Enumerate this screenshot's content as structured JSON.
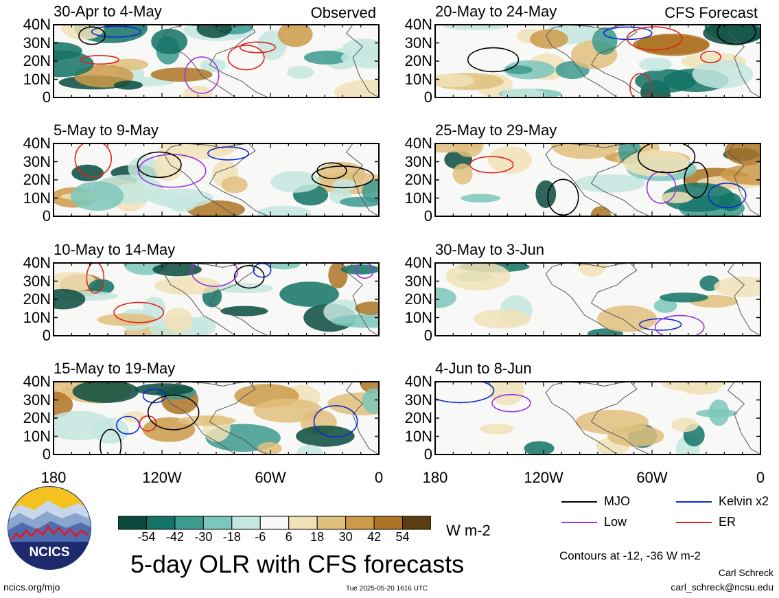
{
  "panels": [
    {
      "id": "p1",
      "col": 0,
      "row": 0,
      "title": "30-Apr to 4-May",
      "tag": "Observed"
    },
    {
      "id": "p2",
      "col": 0,
      "row": 1,
      "title": "5-May to 9-May",
      "tag": ""
    },
    {
      "id": "p3",
      "col": 0,
      "row": 2,
      "title": "10-May to 14-May",
      "tag": ""
    },
    {
      "id": "p4",
      "col": 0,
      "row": 3,
      "title": "15-May to 19-May",
      "tag": ""
    },
    {
      "id": "p5",
      "col": 1,
      "row": 0,
      "title": "20-May to 24-May",
      "tag": "CFS Forecast"
    },
    {
      "id": "p6",
      "col": 1,
      "row": 1,
      "title": "25-May to 29-May",
      "tag": ""
    },
    {
      "id": "p7",
      "col": 1,
      "row": 2,
      "title": "30-May to 3-Jun",
      "tag": ""
    },
    {
      "id": "p8",
      "col": 1,
      "row": 3,
      "title": "4-Jun to 8-Jun",
      "tag": ""
    }
  ],
  "chart_data": {
    "type": "heatmap",
    "title": "5-day OLR with CFS forecasts",
    "y_tick_labels": [
      "40N",
      "30N",
      "20N",
      "10N",
      "0"
    ],
    "x_tick_labels": [
      "180",
      "120W",
      "60W",
      "0"
    ],
    "colorbar": {
      "tick_labels": [
        "-54",
        "-42",
        "-30",
        "-18",
        "-6",
        "6",
        "18",
        "30",
        "42",
        "54"
      ],
      "colors": [
        "#0b4b3e",
        "#137366",
        "#3c9a8e",
        "#7cc7bb",
        "#c4e8df",
        "#f8f8f6",
        "#f1e2b7",
        "#e0c07d",
        "#cc9a48",
        "#ae7425",
        "#5a3d10"
      ],
      "units": "W m-2"
    },
    "contours_note": "Contours at -12, -36 W m-2",
    "legend": [
      {
        "label": "MJO",
        "color": "#000000"
      },
      {
        "label": "Kelvin x2",
        "color": "#0b27d6"
      },
      {
        "label": "Low",
        "color": "#9b30e0"
      },
      {
        "label": "ER",
        "color": "#e02020"
      }
    ]
  },
  "footer": {
    "url": "ncics.org/mjo",
    "timestamp": "Tue 2025-05-20 1616 UTC",
    "author": "Carl Schreck",
    "email": "carl_schreck@ncsu.edu",
    "logo_text": "NCICS"
  }
}
